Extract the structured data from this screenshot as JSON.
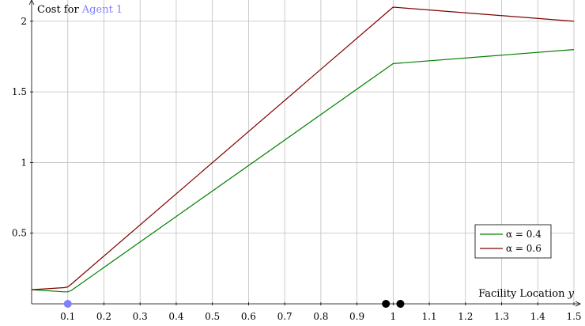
{
  "chart_data": {
    "type": "line",
    "title": "",
    "ylabel_prefix": "Cost for ",
    "ylabel_agent": "Agent 1",
    "xlabel": "Facility Location y",
    "xlim": [
      0,
      1.5
    ],
    "ylim": [
      0,
      2.1
    ],
    "grid": true,
    "legend_position": "lower-right",
    "x_ticks": [
      0.1,
      0.2,
      0.3,
      0.4,
      0.5,
      0.6,
      0.7,
      0.8,
      0.9,
      1,
      1.1,
      1.2,
      1.3,
      1.4,
      1.5
    ],
    "x_tick_labels": [
      "0.1",
      "0.2",
      "0.3",
      "0.4",
      "0.5",
      "0.6",
      "0.7",
      "0.8",
      "0.9",
      "1",
      "1.1",
      "1.2",
      "1.3",
      "1.4",
      "1.5"
    ],
    "y_ticks": [
      0.5,
      1,
      1.5,
      2
    ],
    "y_tick_labels": [
      "0.5",
      "1",
      "1.5",
      "2"
    ],
    "series": [
      {
        "name": "α = 0.4",
        "color": "#008000",
        "x": [
          0,
          0.09,
          0.1,
          0.11,
          1.0,
          1.5
        ],
        "y": [
          0.1,
          0.085,
          0.085,
          0.095,
          1.7,
          1.8
        ]
      },
      {
        "name": "α = 0.6",
        "color": "#800000",
        "x": [
          0,
          0.09,
          0.1,
          0.11,
          1.0,
          1.5
        ],
        "y": [
          0.1,
          0.115,
          0.12,
          0.14,
          2.1,
          2.0
        ]
      }
    ],
    "markers": [
      {
        "x": 0.1,
        "color": "#8080ff",
        "label": "agent-1-location"
      },
      {
        "x": 0.98,
        "color": "#000000",
        "label": "agent-location"
      },
      {
        "x": 1.02,
        "color": "#000000",
        "label": "agent-location"
      }
    ],
    "colors": {
      "agent_label": "#8080ff",
      "grid": "#bfbfbf",
      "axis": "#000000"
    }
  }
}
